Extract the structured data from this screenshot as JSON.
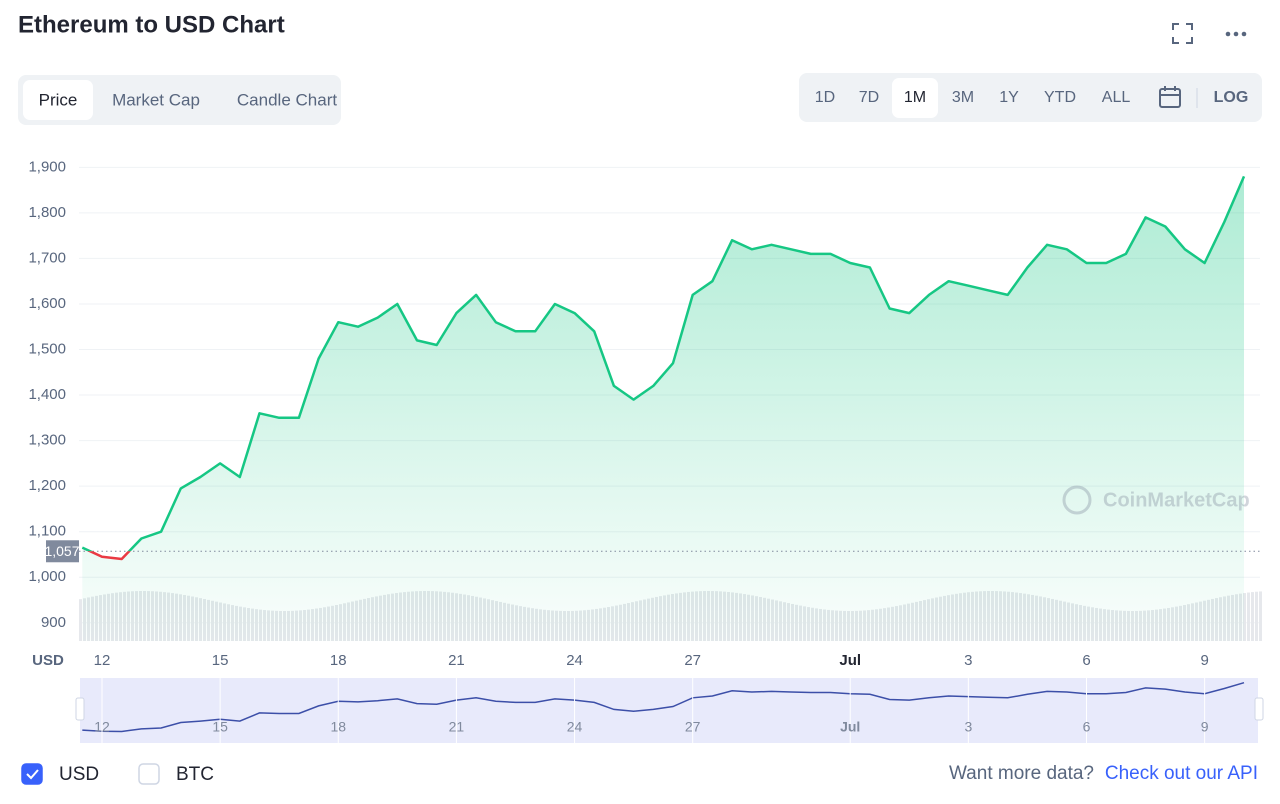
{
  "header": {
    "title": "Ethereum to USD Chart"
  },
  "tabs": {
    "items": [
      "Price",
      "Market Cap",
      "Candle Chart"
    ],
    "active": 0
  },
  "ranges": {
    "items": [
      "1D",
      "7D",
      "1M",
      "3M",
      "1Y",
      "YTD",
      "ALL"
    ],
    "active": 2
  },
  "scale_toggle": "LOG",
  "chart_data": {
    "type": "line",
    "y_label": "USD",
    "watermark": "CoinMarketCap",
    "categories": [
      null,
      "12",
      null,
      null,
      null,
      null,
      null,
      "15",
      null,
      null,
      null,
      null,
      null,
      "18",
      null,
      null,
      null,
      null,
      null,
      "21",
      null,
      null,
      null,
      null,
      null,
      "24",
      null,
      null,
      null,
      null,
      null,
      "27",
      null,
      null,
      null,
      null,
      null,
      null,
      null,
      "Jul",
      null,
      null,
      null,
      null,
      null,
      "3",
      null,
      null,
      null,
      null,
      null,
      "6",
      null,
      null,
      null,
      null,
      null,
      "9",
      null,
      null
    ],
    "series": [
      {
        "name": "USD",
        "color": "#16c784",
        "below_color": "#ea3943",
        "values": [
          1065,
          1045,
          1040,
          1085,
          1100,
          1195,
          1220,
          1250,
          1220,
          1360,
          1350,
          1350,
          1480,
          1560,
          1550,
          1570,
          1600,
          1520,
          1510,
          1580,
          1620,
          1560,
          1540,
          1540,
          1600,
          1580,
          1540,
          1420,
          1390,
          1420,
          1470,
          1620,
          1650,
          1740,
          1720,
          1730,
          1720,
          1710,
          1710,
          1690,
          1680,
          1590,
          1580,
          1620,
          1650,
          1640,
          1630,
          1620,
          1680,
          1730,
          1720,
          1690,
          1690,
          1710,
          1790,
          1770,
          1720,
          1690,
          1780,
          1880
        ]
      }
    ],
    "reference": {
      "value": 1057,
      "label": "1,057"
    },
    "ylim": [
      860,
      1960
    ],
    "yticks": [
      900,
      {
        "value": 1000,
        "label": "1,000"
      },
      {
        "value": 1100,
        "label": "1,100"
      },
      {
        "value": 1200,
        "label": "1,200"
      },
      {
        "value": 1300,
        "label": "1,300"
      },
      {
        "value": 1400,
        "label": "1,400"
      },
      {
        "value": 1500,
        "label": "1,500"
      },
      {
        "value": 1600,
        "label": "1,600"
      },
      {
        "value": 1700,
        "label": "1,700"
      },
      {
        "value": 1800,
        "label": "1,800"
      },
      {
        "value": 1900,
        "label": "1,900"
      }
    ],
    "grid": true
  },
  "currency_options": [
    {
      "label": "USD",
      "checked": true
    },
    {
      "label": "BTC",
      "checked": false
    }
  ],
  "footer": {
    "prompt": "Want more data?",
    "link": "Check out our API"
  }
}
